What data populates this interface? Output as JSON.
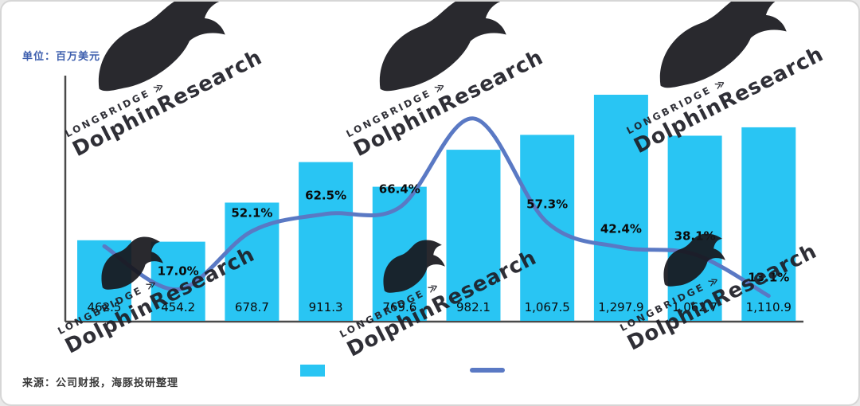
{
  "unit_label": "单位：百万美元",
  "source_label": "来源：公司财报，海豚投研整理",
  "watermark": {
    "brand": "LONGBRIDGE",
    "brand_mark": "≫",
    "name": "DolphinResearch"
  },
  "chart_data": {
    "type": "combo_bar_line",
    "title": "",
    "x_axis_tick_labels_visible": false,
    "bar_series": {
      "color": "#29c5f3",
      "values": [
        462.5,
        454.2,
        678.7,
        911.3,
        769.6,
        982.1,
        1067.5,
        1297.9,
        1062.7,
        1110.9
      ],
      "labels": [
        "462.5",
        "454.2",
        "678.7",
        "911.3",
        "769.6",
        "982.1",
        "1,067.5",
        "1,297.9",
        "1,062.7",
        "1,110.9"
      ],
      "ylim": [
        0,
        1400
      ]
    },
    "line_series": {
      "color": "#5a79c4",
      "values_pct": [
        43,
        17.0,
        52.1,
        62.5,
        66.4,
        120,
        57.3,
        42.4,
        38.1,
        13.1
      ],
      "estimated_indices": [
        0,
        5
      ],
      "labels": [
        "",
        "17.0%",
        "52.1%",
        "62.5%",
        "66.4%",
        "",
        "57.3%",
        "42.4%",
        "38.1%",
        "13.1%"
      ]
    },
    "legend": {
      "bar_swatch_color": "#29c5f3",
      "line_swatch_color": "#5a79c4"
    }
  }
}
